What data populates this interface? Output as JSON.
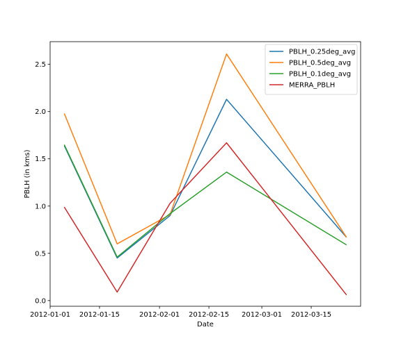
{
  "chart_data": {
    "type": "line",
    "xlabel": "Date",
    "ylabel": "PBLH (in kms)",
    "x": [
      "2012-01-05",
      "2012-01-20",
      "2012-02-04",
      "2012-02-20",
      "2012-03-25"
    ],
    "xlim": [
      "2012-01-01",
      "2012-03-29"
    ],
    "ylim": [
      -0.06,
      2.74
    ],
    "xticks": [
      "2012-01-01",
      "2012-01-15",
      "2012-02-01",
      "2012-02-15",
      "2012-03-01",
      "2012-03-15"
    ],
    "yticks": [
      "0.0",
      "0.5",
      "1.0",
      "1.5",
      "2.0",
      "2.5"
    ],
    "grid": false,
    "legend_position": "top-right",
    "series": [
      {
        "name": "PBLH_0.25deg_avg",
        "color": "#1f77b4",
        "values": [
          1.64,
          0.45,
          0.9,
          2.13,
          0.67
        ]
      },
      {
        "name": "PBLH_0.5deg_avg",
        "color": "#ff7f0e",
        "values": [
          1.98,
          0.6,
          0.91,
          2.61,
          0.67
        ]
      },
      {
        "name": "PBLH_0.1deg_avg",
        "color": "#2ca02c",
        "values": [
          1.65,
          0.46,
          0.92,
          1.36,
          0.59
        ]
      },
      {
        "name": "MERRA_PBLH",
        "color": "#d62728",
        "values": [
          0.99,
          0.09,
          1.03,
          1.67,
          0.06
        ]
      }
    ]
  }
}
